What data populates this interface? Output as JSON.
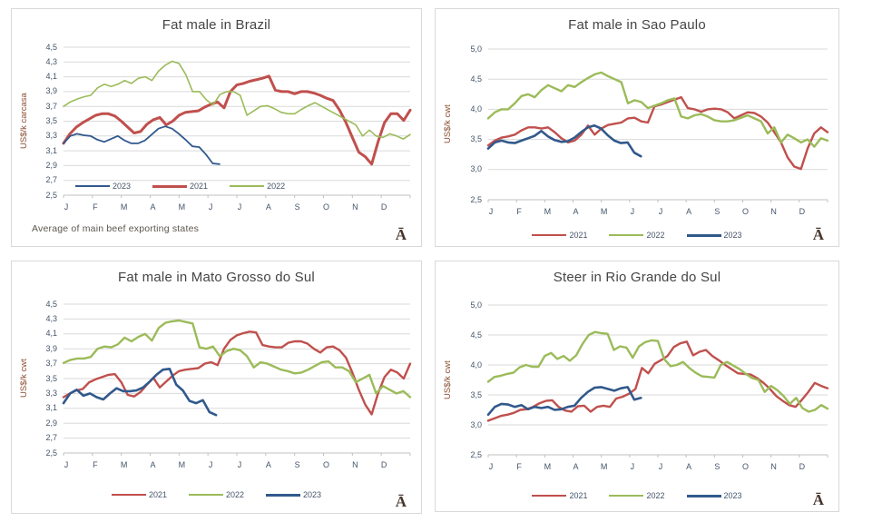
{
  "palette": {
    "red": "#C0504D",
    "green": "#9BBB59",
    "blue": "#31598C",
    "grid": "#dadada",
    "axis": "#c0c0c0",
    "tick_text": "#44546A",
    "title_text": "#454545",
    "ylabel_text": "#8a4b2f",
    "footnote_text": "#5d564e",
    "anchor_text": "#46352a"
  },
  "months": [
    "J",
    "F",
    "M",
    "A",
    "M",
    "J",
    "J",
    "A",
    "S",
    "O",
    "N",
    "D"
  ],
  "anchor_glyph": "Ā",
  "chart_data": [
    {
      "type": "line",
      "title": "Fat male in Brazil",
      "ylabel": "US$/k carcasa",
      "ylim": [
        2.5,
        4.5
      ],
      "ystep": 0.2,
      "ytick_labels": [
        "2,5",
        "2,7",
        "2,9",
        "3,1",
        "3,3",
        "3,5",
        "3,7",
        "3,9",
        "4,1",
        "4,3",
        "4,5"
      ],
      "x_categories": [
        "J",
        "F",
        "M",
        "A",
        "M",
        "J",
        "J",
        "A",
        "S",
        "O",
        "N",
        "D"
      ],
      "grid": true,
      "legend": {
        "position": "inside-bottom-left",
        "order": [
          "2023",
          "2021",
          "2022"
        ]
      },
      "footnote": "Average  of main beef exporting states",
      "anchor_glyph": "Ā",
      "series": [
        {
          "name": "2021",
          "color_key": "red",
          "width": 3,
          "x_end_fraction": 1,
          "values": [
            3.2,
            3.33,
            3.42,
            3.48,
            3.53,
            3.58,
            3.6,
            3.6,
            3.57,
            3.5,
            3.42,
            3.34,
            3.36,
            3.46,
            3.52,
            3.55,
            3.45,
            3.5,
            3.58,
            3.62,
            3.63,
            3.64,
            3.69,
            3.73,
            3.76,
            3.68,
            3.9,
            3.99,
            4.01,
            4.04,
            4.06,
            4.08,
            4.11,
            3.92,
            3.9,
            3.9,
            3.87,
            3.9,
            3.9,
            3.88,
            3.85,
            3.81,
            3.78,
            3.65,
            3.48,
            3.28,
            3.08,
            3.02,
            2.92,
            3.22,
            3.48,
            3.6,
            3.6,
            3.51,
            3.65
          ]
        },
        {
          "name": "2022",
          "color_key": "green",
          "width": 1.6,
          "x_end_fraction": 1,
          "values": [
            3.7,
            3.76,
            3.8,
            3.83,
            3.85,
            3.95,
            4.0,
            3.97,
            4.0,
            4.05,
            4.01,
            4.08,
            4.1,
            4.05,
            4.18,
            4.26,
            4.31,
            4.28,
            4.13,
            3.9,
            3.9,
            3.79,
            3.72,
            3.86,
            3.9,
            3.9,
            3.85,
            3.58,
            3.64,
            3.7,
            3.71,
            3.67,
            3.62,
            3.6,
            3.6,
            3.66,
            3.71,
            3.75,
            3.7,
            3.65,
            3.6,
            3.55,
            3.5,
            3.45,
            3.3,
            3.38,
            3.3,
            3.28,
            3.33,
            3.3,
            3.26,
            3.32
          ]
        },
        {
          "name": "2023",
          "color_key": "blue",
          "width": 1.8,
          "x_end_fraction": 0.45,
          "values": [
            3.2,
            3.3,
            3.33,
            3.31,
            3.3,
            3.25,
            3.22,
            3.26,
            3.3,
            3.24,
            3.2,
            3.2,
            3.24,
            3.32,
            3.4,
            3.43,
            3.4,
            3.33,
            3.25,
            3.16,
            3.15,
            3.05,
            2.93,
            2.92
          ]
        }
      ]
    },
    {
      "type": "line",
      "title": "Fat male in Sao Paulo",
      "ylabel": "US$/k cwt",
      "ylim": [
        2.5,
        5.0
      ],
      "ystep": 0.5,
      "ytick_labels": [
        "2,5",
        "3,0",
        "3,5",
        "4,0",
        "4,5",
        "5,0"
      ],
      "x_categories": [
        "J",
        "F",
        "M",
        "A",
        "M",
        "J",
        "J",
        "A",
        "S",
        "O",
        "N",
        "D"
      ],
      "grid": true,
      "legend": {
        "position": "below-center",
        "order": [
          "2021",
          "2022",
          "2023"
        ]
      },
      "footnote": null,
      "anchor_glyph": "Ā",
      "series": [
        {
          "name": "2021",
          "color_key": "red",
          "width": 2.4,
          "x_end_fraction": 1,
          "values": [
            3.4,
            3.48,
            3.53,
            3.55,
            3.58,
            3.65,
            3.7,
            3.7,
            3.68,
            3.7,
            3.62,
            3.52,
            3.45,
            3.48,
            3.58,
            3.73,
            3.58,
            3.68,
            3.74,
            3.76,
            3.78,
            3.85,
            3.86,
            3.8,
            3.78,
            4.05,
            4.08,
            4.12,
            4.16,
            4.2,
            4.02,
            4.0,
            3.96,
            4.0,
            4.01,
            4.0,
            3.95,
            3.85,
            3.9,
            3.95,
            3.94,
            3.88,
            3.78,
            3.62,
            3.45,
            3.2,
            3.05,
            3.01,
            3.35,
            3.6,
            3.7,
            3.62
          ]
        },
        {
          "name": "2022",
          "color_key": "green",
          "width": 2.4,
          "x_end_fraction": 1,
          "values": [
            3.85,
            3.95,
            4.0,
            4.0,
            4.1,
            4.22,
            4.25,
            4.2,
            4.32,
            4.4,
            4.35,
            4.3,
            4.4,
            4.37,
            4.45,
            4.52,
            4.58,
            4.61,
            4.55,
            4.5,
            4.45,
            4.1,
            4.15,
            4.12,
            4.02,
            4.06,
            4.1,
            4.15,
            4.18,
            3.88,
            3.85,
            3.9,
            3.92,
            3.88,
            3.82,
            3.8,
            3.8,
            3.82,
            3.86,
            3.9,
            3.85,
            3.8,
            3.6,
            3.7,
            3.45,
            3.58,
            3.52,
            3.45,
            3.5,
            3.38,
            3.52,
            3.48
          ]
        },
        {
          "name": "2023",
          "color_key": "blue",
          "width": 2.6,
          "x_end_fraction": 0.45,
          "values": [
            3.35,
            3.45,
            3.48,
            3.45,
            3.44,
            3.48,
            3.52,
            3.56,
            3.64,
            3.55,
            3.49,
            3.46,
            3.47,
            3.53,
            3.62,
            3.7,
            3.73,
            3.68,
            3.57,
            3.48,
            3.44,
            3.45,
            3.28,
            3.22
          ]
        }
      ]
    },
    {
      "type": "line",
      "title": "Fat male in Mato Grosso do Sul",
      "ylabel": "US$/k cwt",
      "ylim": [
        2.5,
        4.5
      ],
      "ystep": 0.2,
      "ytick_labels": [
        "2,5",
        "2,7",
        "2,9",
        "3,1",
        "3,3",
        "3,5",
        "3,7",
        "3,9",
        "4,1",
        "4,3",
        "4,5"
      ],
      "x_categories": [
        "J",
        "F",
        "M",
        "A",
        "M",
        "J",
        "J",
        "A",
        "S",
        "O",
        "N",
        "D"
      ],
      "grid": true,
      "legend": {
        "position": "below-center",
        "order": [
          "2021",
          "2022",
          "2023"
        ]
      },
      "footnote": null,
      "anchor_glyph": "Ā",
      "series": [
        {
          "name": "2021",
          "color_key": "red",
          "width": 2.4,
          "x_end_fraction": 1,
          "values": [
            3.25,
            3.3,
            3.34,
            3.36,
            3.45,
            3.49,
            3.52,
            3.55,
            3.56,
            3.45,
            3.28,
            3.26,
            3.32,
            3.42,
            3.51,
            3.38,
            3.46,
            3.54,
            3.6,
            3.62,
            3.63,
            3.64,
            3.7,
            3.72,
            3.68,
            3.9,
            4.02,
            4.08,
            4.11,
            4.13,
            4.12,
            3.95,
            3.93,
            3.92,
            3.92,
            3.98,
            4.0,
            4.0,
            3.97,
            3.9,
            3.85,
            3.92,
            3.93,
            3.88,
            3.78,
            3.58,
            3.35,
            3.15,
            3.02,
            3.3,
            3.52,
            3.62,
            3.58,
            3.5,
            3.7
          ]
        },
        {
          "name": "2022",
          "color_key": "green",
          "width": 2.4,
          "x_end_fraction": 1,
          "values": [
            3.71,
            3.75,
            3.77,
            3.77,
            3.79,
            3.9,
            3.93,
            3.92,
            3.96,
            4.05,
            4.0,
            4.06,
            4.1,
            4.01,
            4.18,
            4.25,
            4.27,
            4.28,
            4.26,
            4.24,
            3.92,
            3.9,
            3.93,
            3.8,
            3.87,
            3.9,
            3.88,
            3.8,
            3.65,
            3.72,
            3.7,
            3.66,
            3.62,
            3.6,
            3.57,
            3.58,
            3.62,
            3.67,
            3.72,
            3.73,
            3.65,
            3.65,
            3.6,
            3.45,
            3.5,
            3.55,
            3.3,
            3.4,
            3.35,
            3.3,
            3.33,
            3.25
          ]
        },
        {
          "name": "2023",
          "color_key": "blue",
          "width": 2.6,
          "x_end_fraction": 0.44,
          "values": [
            3.17,
            3.3,
            3.35,
            3.27,
            3.3,
            3.25,
            3.22,
            3.3,
            3.37,
            3.33,
            3.33,
            3.34,
            3.38,
            3.46,
            3.55,
            3.62,
            3.63,
            3.42,
            3.34,
            3.2,
            3.17,
            3.21,
            3.05,
            3.01
          ]
        }
      ]
    },
    {
      "type": "line",
      "title": "Steer  in Rio Grande do Sul",
      "ylabel": "US$/k cwt",
      "ylim": [
        2.5,
        5.0
      ],
      "ystep": 0.5,
      "ytick_labels": [
        "2,5",
        "3,0",
        "3,5",
        "4,0",
        "4,5",
        "5,0"
      ],
      "x_categories": [
        "J",
        "F",
        "M",
        "A",
        "M",
        "J",
        "J",
        "A",
        "S",
        "O",
        "N",
        "D"
      ],
      "grid": true,
      "legend": {
        "position": "below-center",
        "order": [
          "2021",
          "2022",
          "2023"
        ]
      },
      "footnote": null,
      "anchor_glyph": "Ā",
      "series": [
        {
          "name": "2021",
          "color_key": "red",
          "width": 2.4,
          "x_end_fraction": 1,
          "values": [
            3.07,
            3.11,
            3.15,
            3.17,
            3.2,
            3.25,
            3.26,
            3.3,
            3.36,
            3.4,
            3.41,
            3.3,
            3.24,
            3.22,
            3.31,
            3.32,
            3.22,
            3.3,
            3.32,
            3.3,
            3.44,
            3.47,
            3.52,
            3.6,
            3.95,
            3.86,
            4.02,
            4.08,
            4.15,
            4.3,
            4.36,
            4.39,
            4.16,
            4.22,
            4.25,
            4.15,
            4.08,
            4.0,
            3.93,
            3.86,
            3.85,
            3.84,
            3.78,
            3.7,
            3.6,
            3.48,
            3.4,
            3.33,
            3.3,
            3.42,
            3.55,
            3.7,
            3.65,
            3.61
          ]
        },
        {
          "name": "2022",
          "color_key": "green",
          "width": 2.4,
          "x_end_fraction": 1,
          "values": [
            3.72,
            3.8,
            3.82,
            3.85,
            3.87,
            3.96,
            4.0,
            3.97,
            3.97,
            4.15,
            4.2,
            4.1,
            4.15,
            4.07,
            4.16,
            4.35,
            4.5,
            4.55,
            4.53,
            4.52,
            4.25,
            4.31,
            4.29,
            4.12,
            4.31,
            4.38,
            4.41,
            4.4,
            4.1,
            3.98,
            4.0,
            4.05,
            3.95,
            3.87,
            3.81,
            3.8,
            3.79,
            4.0,
            4.05,
            3.99,
            3.93,
            3.85,
            3.78,
            3.75,
            3.55,
            3.65,
            3.58,
            3.48,
            3.35,
            3.45,
            3.28,
            3.22,
            3.25,
            3.33,
            3.27
          ]
        },
        {
          "name": "2023",
          "color_key": "blue",
          "width": 2.6,
          "x_end_fraction": 0.45,
          "values": [
            3.17,
            3.3,
            3.35,
            3.34,
            3.3,
            3.33,
            3.26,
            3.3,
            3.28,
            3.3,
            3.25,
            3.26,
            3.3,
            3.32,
            3.45,
            3.55,
            3.62,
            3.63,
            3.6,
            3.57,
            3.61,
            3.63,
            3.42,
            3.45
          ]
        }
      ]
    }
  ]
}
